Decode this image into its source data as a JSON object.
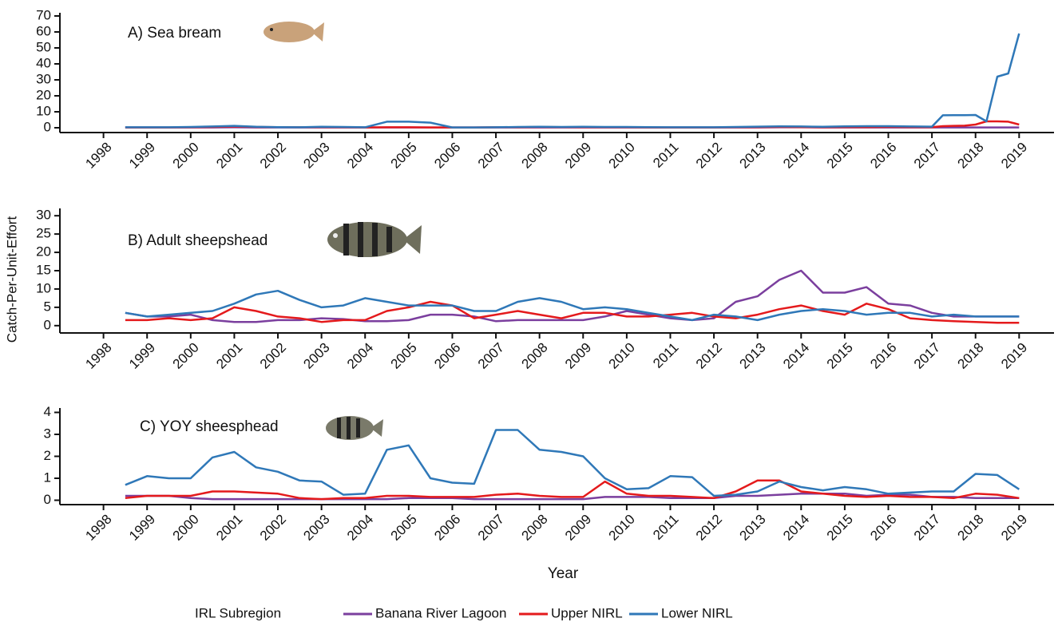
{
  "ylabel": "Catch-Per-Unit-Effort",
  "xlabel": "Year",
  "legend_title": "IRL Subregion",
  "chart_data": [
    {
      "type": "line",
      "title": "A) Sea bream",
      "x": [
        1998.5,
        1999,
        1999.5,
        2000,
        2000.5,
        2001,
        2001.5,
        2002,
        2002.5,
        2003,
        2003.5,
        2004,
        2004.5,
        2005,
        2005.5,
        2006,
        2006.5,
        2007,
        2007.5,
        2008,
        2008.5,
        2009,
        2009.5,
        2010,
        2010.5,
        2011,
        2011.5,
        2012,
        2012.5,
        2013,
        2013.5,
        2014,
        2014.5,
        2015,
        2015.5,
        2016,
        2016.5,
        2017,
        2017.25,
        2017.5,
        2017.75,
        2018,
        2018.25,
        2018.5,
        2018.75,
        2019
      ],
      "series": [
        {
          "name": "Banana River Lagoon",
          "color": "#7b3f9e",
          "values": [
            0.2,
            0.2,
            0.2,
            0.2,
            0.2,
            0.3,
            0.2,
            0.2,
            0.2,
            0.2,
            0.2,
            0.2,
            0.2,
            0.2,
            0.2,
            0.2,
            0.2,
            0.2,
            0.2,
            0.2,
            0.2,
            0.2,
            0.2,
            0.2,
            0.2,
            0.2,
            0.2,
            0.2,
            0.2,
            0.2,
            0.3,
            0.3,
            0.2,
            0.2,
            0.2,
            0.2,
            0.2,
            0.2,
            0.2,
            0.2,
            0.2,
            0.2,
            0.2,
            0.2,
            0.2,
            0.2
          ]
        },
        {
          "name": "Upper NIRL",
          "color": "#e41a1c",
          "values": [
            0.2,
            0.2,
            0.2,
            0.3,
            0.5,
            0.8,
            0.5,
            0.4,
            0.3,
            0.4,
            0.3,
            0.2,
            0.3,
            0.3,
            0.2,
            0.2,
            0.2,
            0.3,
            0.3,
            0.5,
            0.4,
            0.4,
            0.3,
            0.3,
            0.2,
            0.2,
            0.2,
            0.2,
            0.3,
            0.4,
            0.5,
            0.4,
            0.3,
            0.4,
            0.4,
            0.5,
            0.4,
            0.4,
            1.0,
            1.2,
            1.3,
            2.0,
            4.0,
            4.0,
            3.8,
            2.0
          ]
        },
        {
          "name": "Lower NIRL",
          "color": "#2f78b8",
          "values": [
            0.3,
            0.3,
            0.3,
            0.5,
            0.8,
            1.2,
            0.6,
            0.4,
            0.3,
            0.6,
            0.5,
            0.3,
            3.8,
            3.8,
            3.2,
            0.2,
            0.2,
            0.3,
            0.5,
            0.6,
            0.5,
            0.6,
            0.5,
            0.5,
            0.4,
            0.3,
            0.3,
            0.3,
            0.5,
            0.7,
            0.9,
            0.8,
            0.6,
            0.9,
            1.0,
            1.0,
            0.8,
            0.7,
            7.8,
            7.9,
            7.9,
            8.0,
            4,
            32,
            34,
            59
          ]
        }
      ],
      "xlim": [
        1997,
        2019.8
      ],
      "xticks": [
        1998,
        1999,
        2000,
        2001,
        2002,
        2003,
        2004,
        2005,
        2006,
        2007,
        2008,
        2009,
        2010,
        2011,
        2012,
        2013,
        2014,
        2015,
        2016,
        2017,
        2018,
        2019
      ],
      "ylim": [
        -3,
        72
      ],
      "yticks": [
        0,
        10,
        20,
        30,
        40,
        50,
        60,
        70
      ]
    },
    {
      "type": "line",
      "title": "B) Adult sheepshead",
      "x": [
        1998.5,
        1999,
        1999.5,
        2000,
        2000.5,
        2001,
        2001.5,
        2002,
        2002.5,
        2003,
        2003.5,
        2004,
        2004.5,
        2005,
        2005.5,
        2006,
        2006.5,
        2007,
        2007.5,
        2008,
        2008.5,
        2009,
        2009.5,
        2010,
        2010.5,
        2011,
        2011.5,
        2012,
        2012.5,
        2013,
        2013.5,
        2014,
        2014.5,
        2015,
        2015.5,
        2016,
        2016.5,
        2017,
        2017.5,
        2018,
        2018.5,
        2019
      ],
      "series": [
        {
          "name": "Banana River Lagoon",
          "color": "#7b3f9e",
          "values": [
            3.5,
            2.5,
            2.5,
            3.0,
            1.5,
            1.0,
            1.0,
            1.5,
            1.5,
            2.0,
            1.8,
            1.2,
            1.2,
            1.5,
            3.0,
            3.0,
            2.5,
            1.2,
            1.5,
            1.5,
            1.5,
            1.5,
            2.5,
            4.0,
            3.0,
            2.0,
            1.5,
            2.0,
            6.5,
            8.0,
            12.5,
            15.0,
            9.0,
            9.0,
            10.5,
            6.0,
            5.5,
            3.5,
            2.5,
            2.5,
            2.5,
            2.5
          ]
        },
        {
          "name": "Upper NIRL",
          "color": "#e41a1c",
          "values": [
            1.5,
            1.5,
            2.0,
            1.5,
            2.0,
            5.0,
            4.0,
            2.5,
            2.0,
            1.0,
            1.5,
            1.5,
            4.0,
            5.0,
            6.5,
            5.5,
            2.0,
            3.0,
            4.0,
            3.0,
            2.0,
            3.5,
            3.5,
            2.5,
            2.5,
            3.0,
            3.5,
            2.5,
            2.0,
            3.0,
            4.5,
            5.5,
            4.0,
            3.0,
            6.0,
            4.5,
            2.0,
            1.5,
            1.2,
            1.0,
            0.8,
            0.8
          ]
        },
        {
          "name": "Lower NIRL",
          "color": "#2f78b8",
          "values": [
            3.5,
            2.5,
            3.0,
            3.5,
            4.0,
            6.0,
            8.5,
            9.5,
            7.0,
            5.0,
            5.5,
            7.5,
            6.5,
            5.5,
            5.5,
            5.5,
            4.0,
            4.0,
            6.5,
            7.5,
            6.5,
            4.5,
            5.0,
            4.5,
            3.5,
            2.5,
            1.5,
            3.0,
            2.5,
            1.5,
            3.0,
            4.0,
            4.5,
            4.0,
            3.0,
            3.5,
            3.5,
            2.5,
            3.0,
            2.5,
            2.5,
            2.5
          ]
        }
      ],
      "xlim": [
        1997,
        2019.8
      ],
      "xticks": [
        1998,
        1999,
        2000,
        2001,
        2002,
        2003,
        2004,
        2005,
        2006,
        2007,
        2008,
        2009,
        2010,
        2011,
        2012,
        2013,
        2014,
        2015,
        2016,
        2017,
        2018,
        2019
      ],
      "ylim": [
        -2,
        32
      ],
      "yticks": [
        0,
        5,
        10,
        15,
        20,
        25,
        30
      ]
    },
    {
      "type": "line",
      "title": "C) YOY sheesphead",
      "x": [
        1998.5,
        1999,
        1999.5,
        2000,
        2000.5,
        2001,
        2001.5,
        2002,
        2002.5,
        2003,
        2003.5,
        2004,
        2004.5,
        2005,
        2005.5,
        2006,
        2006.5,
        2007,
        2007.5,
        2008,
        2008.5,
        2009,
        2009.5,
        2010,
        2010.5,
        2011,
        2011.5,
        2012,
        2012.5,
        2013,
        2013.5,
        2014,
        2014.5,
        2015,
        2015.5,
        2016,
        2016.5,
        2017,
        2017.5,
        2018,
        2018.5,
        2019
      ],
      "series": [
        {
          "name": "Banana River Lagoon",
          "color": "#7b3f9e",
          "values": [
            0.2,
            0.2,
            0.2,
            0.1,
            0.05,
            0.05,
            0.05,
            0.05,
            0.05,
            0.05,
            0.05,
            0.05,
            0.05,
            0.1,
            0.1,
            0.1,
            0.05,
            0.05,
            0.05,
            0.05,
            0.05,
            0.05,
            0.15,
            0.15,
            0.15,
            0.1,
            0.1,
            0.1,
            0.2,
            0.2,
            0.25,
            0.3,
            0.3,
            0.3,
            0.2,
            0.25,
            0.25,
            0.15,
            0.15,
            0.1,
            0.1,
            0.1
          ]
        },
        {
          "name": "Upper NIRL",
          "color": "#e41a1c",
          "values": [
            0.1,
            0.2,
            0.2,
            0.2,
            0.4,
            0.4,
            0.35,
            0.3,
            0.1,
            0.05,
            0.1,
            0.1,
            0.2,
            0.2,
            0.15,
            0.15,
            0.15,
            0.25,
            0.3,
            0.2,
            0.15,
            0.15,
            0.85,
            0.3,
            0.2,
            0.2,
            0.15,
            0.1,
            0.4,
            0.9,
            0.9,
            0.4,
            0.3,
            0.2,
            0.15,
            0.2,
            0.15,
            0.15,
            0.1,
            0.3,
            0.25,
            0.1
          ]
        },
        {
          "name": "Lower NIRL",
          "color": "#2f78b8",
          "values": [
            0.7,
            1.1,
            1.0,
            1.0,
            1.95,
            2.2,
            1.5,
            1.3,
            0.9,
            0.85,
            0.25,
            0.3,
            2.3,
            2.5,
            1.0,
            0.8,
            0.75,
            3.2,
            3.2,
            2.3,
            2.2,
            2.0,
            1.0,
            0.5,
            0.55,
            1.1,
            1.05,
            0.2,
            0.25,
            0.4,
            0.85,
            0.6,
            0.45,
            0.6,
            0.5,
            0.3,
            0.35,
            0.4,
            0.4,
            1.2,
            1.15,
            0.5
          ]
        }
      ],
      "xlim": [
        1997,
        2019.8
      ],
      "xticks": [
        1998,
        1999,
        2000,
        2001,
        2002,
        2003,
        2004,
        2005,
        2006,
        2007,
        2008,
        2009,
        2010,
        2011,
        2012,
        2013,
        2014,
        2015,
        2016,
        2017,
        2018,
        2019
      ],
      "ylim": [
        -0.2,
        4.2
      ],
      "yticks": [
        0,
        1,
        2,
        3,
        4
      ]
    }
  ]
}
